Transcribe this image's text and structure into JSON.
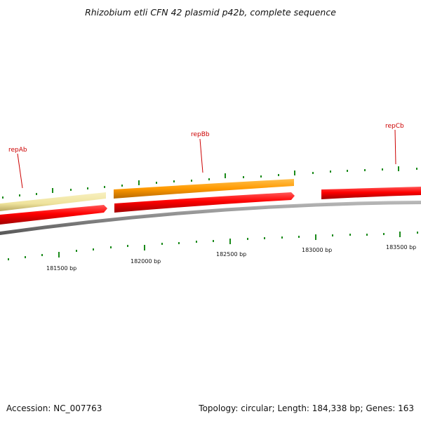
{
  "title": "Rhizobium etli CFN 42 plasmid p42b, complete sequence",
  "footer": {
    "accession": "Accession: NC_007763",
    "summary": "Topology: circular; Length: 184,338 bp; Genes: 163"
  },
  "gene_labels": [
    "repAb",
    "repBb",
    "repCb"
  ],
  "bp_ticks": [
    "181500 bp",
    "182000 bp",
    "182500 bp",
    "183000 bp",
    "183500 bp"
  ],
  "colors": {
    "forward_gene": "#ff0000",
    "rep_orange": "#ff9900",
    "rep_pale_yellow": "#f0e6a0",
    "backbone": "#888888",
    "tick_marks": "#1a8a1a",
    "label_red": "#cc0000"
  }
}
